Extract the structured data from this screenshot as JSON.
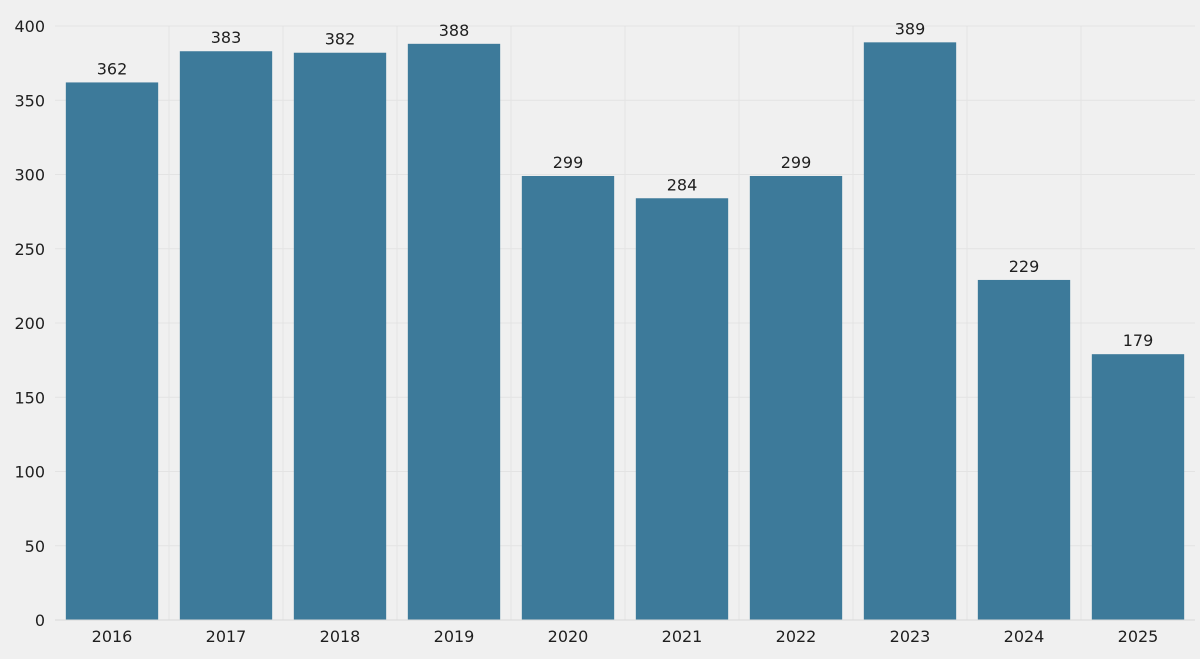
{
  "chart_data": {
    "type": "bar",
    "title": "",
    "xlabel": "",
    "ylabel": "",
    "categories": [
      "2016",
      "2017",
      "2018",
      "2019",
      "2020",
      "2021",
      "2022",
      "2023",
      "2024",
      "2025"
    ],
    "values": [
      362,
      383,
      382,
      388,
      299,
      284,
      299,
      389,
      229,
      179
    ],
    "data_labels": [
      "362",
      "383",
      "382",
      "388",
      "299",
      "284",
      "299",
      "389",
      "229",
      "179"
    ],
    "y_ticks": [
      0,
      50,
      100,
      150,
      200,
      250,
      300,
      350,
      400
    ],
    "y_tick_labels": [
      "0",
      "50",
      "100",
      "150",
      "200",
      "250",
      "300",
      "350",
      "400"
    ],
    "ylim": [
      0,
      400
    ],
    "grid": true,
    "legend": "none",
    "colors": {
      "bar": "#3d7a9a",
      "background": "#f0f0f0",
      "grid": "#e3e3e3",
      "text": "#1f1f1f"
    }
  }
}
